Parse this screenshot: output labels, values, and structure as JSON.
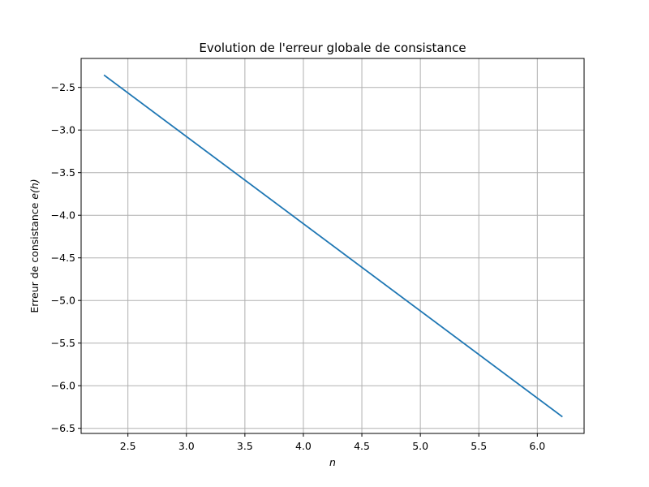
{
  "chart_data": {
    "type": "line",
    "title": "Evolution de l'erreur globale de consistance",
    "xlabel_text": "n",
    "ylabel_prefix": "Erreur de consistance ",
    "ylabel_math": "e(h)",
    "xlim": [
      2.1,
      6.4
    ],
    "ylim": [
      -6.56,
      -2.16
    ],
    "x_ticks": [
      2.5,
      3.0,
      3.5,
      4.0,
      4.5,
      5.0,
      5.5,
      6.0
    ],
    "x_tick_labels": [
      "2.5",
      "3.0",
      "3.5",
      "4.0",
      "4.5",
      "5.0",
      "5.5",
      "6.0"
    ],
    "y_ticks": [
      -2.5,
      -3.0,
      -3.5,
      -4.0,
      -4.5,
      -5.0,
      -5.5,
      -6.0,
      -6.5
    ],
    "y_tick_labels": [
      "−2.5",
      "−3.0",
      "−3.5",
      "−4.0",
      "−4.5",
      "−5.0",
      "−5.5",
      "−6.0",
      "−6.5"
    ],
    "grid": true,
    "series": [
      {
        "color": "#1f77b4",
        "x": [
          2.3,
          6.21
        ],
        "y": [
          -2.36,
          -6.36
        ]
      }
    ]
  }
}
